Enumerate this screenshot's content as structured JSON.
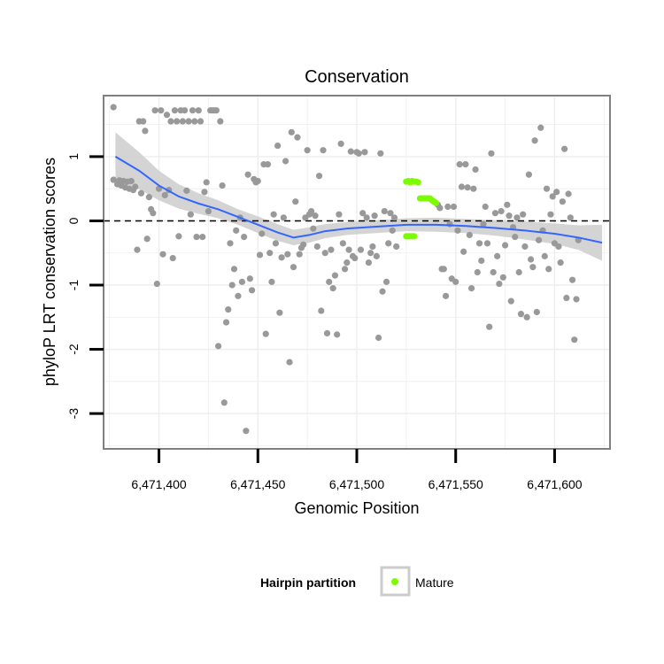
{
  "chart_data": {
    "type": "scatter",
    "title": "Conservation",
    "xlabel": "Genomic Position",
    "ylabel": "phyloP LRT conservation scores",
    "xlim": [
      6471372,
      6471628
    ],
    "ylim": [
      -3.55,
      1.95
    ],
    "x_ticks": [
      6471400,
      6471450,
      6471500,
      6471550,
      6471600
    ],
    "x_tick_labels": [
      "6,471,400",
      "6,471,450",
      "6,471,500",
      "6,471,550",
      "6,471,600"
    ],
    "y_ticks": [
      -3,
      -2,
      -1,
      0,
      1
    ],
    "y_tick_labels": [
      "-3",
      "-2",
      "-1",
      "0",
      "1"
    ],
    "reference_line": {
      "y": 0,
      "style": "dashed"
    },
    "legend": {
      "title": "Hairpin partition",
      "entries": [
        "Mature"
      ],
      "position": "bottom"
    },
    "colors": {
      "other": "#999999",
      "mature": "#7CFC00",
      "smooth": "#3366FF",
      "band": "#cccccc",
      "grid": "#eeeeee",
      "border": "#808080"
    },
    "smooth_curve": [
      [
        6471378,
        1.0
      ],
      [
        6471390,
        0.78
      ],
      [
        6471400,
        0.55
      ],
      [
        6471410,
        0.38
      ],
      [
        6471420,
        0.27
      ],
      [
        6471430,
        0.18
      ],
      [
        6471440,
        0.06
      ],
      [
        6471450,
        -0.06
      ],
      [
        6471460,
        -0.18
      ],
      [
        6471468,
        -0.26
      ],
      [
        6471476,
        -0.22
      ],
      [
        6471484,
        -0.16
      ],
      [
        6471495,
        -0.12
      ],
      [
        6471510,
        -0.09
      ],
      [
        6471525,
        -0.06
      ],
      [
        6471540,
        -0.06
      ],
      [
        6471555,
        -0.08
      ],
      [
        6471570,
        -0.11
      ],
      [
        6471585,
        -0.15
      ],
      [
        6471600,
        -0.2
      ],
      [
        6471612,
        -0.26
      ],
      [
        6471624,
        -0.34
      ]
    ],
    "band_upper": [
      1.38,
      1.07,
      0.78,
      0.57,
      0.43,
      0.32,
      0.18,
      0.07,
      -0.05,
      -0.14,
      -0.1,
      -0.05,
      -0.02,
      0.01,
      0.04,
      0.05,
      0.03,
      0.01,
      -0.01,
      -0.04,
      -0.07,
      -0.06
    ],
    "band_lower": [
      0.62,
      0.49,
      0.32,
      0.19,
      0.11,
      0.04,
      -0.06,
      -0.19,
      -0.31,
      -0.38,
      -0.34,
      -0.27,
      -0.22,
      -0.19,
      -0.16,
      -0.17,
      -0.19,
      -0.23,
      -0.29,
      -0.36,
      -0.45,
      -0.62
    ],
    "mature_points": [
      [
        6471525,
        0.61
      ],
      [
        6471526,
        0.62
      ],
      [
        6471527,
        0.6
      ],
      [
        6471528,
        0.62
      ],
      [
        6471529,
        0.61
      ],
      [
        6471530,
        0.61
      ],
      [
        6471531,
        0.6
      ],
      [
        6471532,
        0.35
      ],
      [
        6471533,
        0.35
      ],
      [
        6471534,
        0.35
      ],
      [
        6471535,
        0.35
      ],
      [
        6471536,
        0.35
      ],
      [
        6471537,
        0.35
      ],
      [
        6471538,
        0.32
      ],
      [
        6471539,
        0.3
      ],
      [
        6471540,
        0.28
      ],
      [
        6471525,
        -0.24
      ],
      [
        6471526,
        -0.24
      ],
      [
        6471527,
        -0.24
      ],
      [
        6471528,
        -0.24
      ],
      [
        6471529,
        -0.24
      ]
    ],
    "other_points": [
      [
        6471377,
        1.77
      ],
      [
        6471377,
        0.64
      ],
      [
        6471379,
        0.57
      ],
      [
        6471380,
        0.63
      ],
      [
        6471381,
        0.55
      ],
      [
        6471382,
        0.62
      ],
      [
        6471383,
        0.52
      ],
      [
        6471384,
        0.61
      ],
      [
        6471385,
        0.5
      ],
      [
        6471386,
        0.62
      ],
      [
        6471387,
        0.48
      ],
      [
        6471388,
        0.53
      ],
      [
        6471389,
        -0.45
      ],
      [
        6471390,
        1.55
      ],
      [
        6471391,
        0.43
      ],
      [
        6471392,
        1.55
      ],
      [
        6471393,
        1.4
      ],
      [
        6471394,
        -0.28
      ],
      [
        6471395,
        0.37
      ],
      [
        6471396,
        0.18
      ],
      [
        6471397,
        0.12
      ],
      [
        6471398,
        1.72
      ],
      [
        6471399,
        -0.98
      ],
      [
        6471400,
        0.5
      ],
      [
        6471401,
        1.72
      ],
      [
        6471402,
        -0.52
      ],
      [
        6471403,
        0.4
      ],
      [
        6471404,
        1.65
      ],
      [
        6471405,
        0.48
      ],
      [
        6471406,
        1.55
      ],
      [
        6471407,
        -0.58
      ],
      [
        6471408,
        1.72
      ],
      [
        6471409,
        1.55
      ],
      [
        6471410,
        -0.24
      ],
      [
        6471411,
        1.72
      ],
      [
        6471412,
        1.55
      ],
      [
        6471413,
        1.72
      ],
      [
        6471414,
        0.47
      ],
      [
        6471415,
        1.55
      ],
      [
        6471416,
        0.1
      ],
      [
        6471417,
        1.72
      ],
      [
        6471418,
        1.55
      ],
      [
        6471419,
        -0.25
      ],
      [
        6471420,
        1.72
      ],
      [
        6471421,
        1.55
      ],
      [
        6471422,
        -0.25
      ],
      [
        6471423,
        0.45
      ],
      [
        6471424,
        0.6
      ],
      [
        6471425,
        0.15
      ],
      [
        6471426,
        1.72
      ],
      [
        6471427,
        1.72
      ],
      [
        6471428,
        1.72
      ],
      [
        6471429,
        1.72
      ],
      [
        6471430,
        -1.95
      ],
      [
        6471431,
        1.55
      ],
      [
        6471432,
        0.55
      ],
      [
        6471433,
        -2.83
      ],
      [
        6471434,
        -1.58
      ],
      [
        6471435,
        -1.38
      ],
      [
        6471436,
        -0.35
      ],
      [
        6471437,
        -1.0
      ],
      [
        6471438,
        -0.75
      ],
      [
        6471439,
        -0.15
      ],
      [
        6471440,
        -1.17
      ],
      [
        6471441,
        0.05
      ],
      [
        6471442,
        -0.95
      ],
      [
        6471443,
        -0.25
      ],
      [
        6471444,
        -3.27
      ],
      [
        6471445,
        0.72
      ],
      [
        6471446,
        -0.9
      ],
      [
        6471447,
        -1.08
      ],
      [
        6471448,
        0.65
      ],
      [
        6471449,
        0.6
      ],
      [
        6471450,
        0.62
      ],
      [
        6471451,
        -0.53
      ],
      [
        6471452,
        -0.2
      ],
      [
        6471453,
        0.88
      ],
      [
        6471454,
        -1.76
      ],
      [
        6471455,
        0.88
      ],
      [
        6471456,
        -0.5
      ],
      [
        6471457,
        -0.95
      ],
      [
        6471458,
        0.1
      ],
      [
        6471459,
        -0.35
      ],
      [
        6471460,
        1.17
      ],
      [
        6471461,
        -1.43
      ],
      [
        6471462,
        -0.57
      ],
      [
        6471463,
        0.05
      ],
      [
        6471464,
        0.93
      ],
      [
        6471465,
        -0.52
      ],
      [
        6471466,
        -2.2
      ],
      [
        6471467,
        1.38
      ],
      [
        6471468,
        -0.72
      ],
      [
        6471469,
        0.3
      ],
      [
        6471470,
        1.3
      ],
      [
        6471471,
        -0.52
      ],
      [
        6471472,
        -0.42
      ],
      [
        6471473,
        -0.37
      ],
      [
        6471474,
        0.05
      ],
      [
        6471475,
        1.1
      ],
      [
        6471476,
        0.1
      ],
      [
        6471477,
        0.15
      ],
      [
        6471478,
        -0.12
      ],
      [
        6471479,
        0.08
      ],
      [
        6471480,
        -0.4
      ],
      [
        6471481,
        0.7
      ],
      [
        6471482,
        -1.4
      ],
      [
        6471483,
        1.1
      ],
      [
        6471484,
        -0.5
      ],
      [
        6471485,
        -1.75
      ],
      [
        6471486,
        -0.95
      ],
      [
        6471487,
        -0.45
      ],
      [
        6471488,
        -1.05
      ],
      [
        6471489,
        -0.85
      ],
      [
        6471490,
        -1.77
      ],
      [
        6471491,
        0.1
      ],
      [
        6471492,
        1.2
      ],
      [
        6471493,
        -0.35
      ],
      [
        6471494,
        -0.75
      ],
      [
        6471495,
        -0.65
      ],
      [
        6471496,
        -0.45
      ],
      [
        6471497,
        1.08
      ],
      [
        6471498,
        -0.55
      ],
      [
        6471499,
        -0.58
      ],
      [
        6471500,
        1.07
      ],
      [
        6471501,
        1.05
      ],
      [
        6471502,
        -0.45
      ],
      [
        6471503,
        0.12
      ],
      [
        6471504,
        1.07
      ],
      [
        6471505,
        0.05
      ],
      [
        6471506,
        -0.65
      ],
      [
        6471507,
        -0.5
      ],
      [
        6471508,
        -0.4
      ],
      [
        6471509,
        0.08
      ],
      [
        6471510,
        -0.55
      ],
      [
        6471511,
        -1.82
      ],
      [
        6471512,
        1.05
      ],
      [
        6471513,
        -1.1
      ],
      [
        6471514,
        0.15
      ],
      [
        6471515,
        -0.95
      ],
      [
        6471516,
        -0.35
      ],
      [
        6471517,
        0.12
      ],
      [
        6471518,
        -0.15
      ],
      [
        6471519,
        0.05
      ],
      [
        6471520,
        -0.4
      ],
      [
        6471541,
        0.25
      ],
      [
        6471542,
        0.2
      ],
      [
        6471543,
        -0.75
      ],
      [
        6471544,
        -0.75
      ],
      [
        6471545,
        -1.17
      ],
      [
        6471546,
        0.22
      ],
      [
        6471547,
        -0.05
      ],
      [
        6471548,
        -0.9
      ],
      [
        6471549,
        0.22
      ],
      [
        6471550,
        -0.95
      ],
      [
        6471551,
        -0.15
      ],
      [
        6471552,
        0.88
      ],
      [
        6471553,
        0.53
      ],
      [
        6471554,
        -0.48
      ],
      [
        6471555,
        0.88
      ],
      [
        6471556,
        0.52
      ],
      [
        6471557,
        -0.22
      ],
      [
        6471558,
        -1.05
      ],
      [
        6471559,
        0.5
      ],
      [
        6471560,
        0.8
      ],
      [
        6471561,
        -0.8
      ],
      [
        6471562,
        -0.35
      ],
      [
        6471563,
        -0.62
      ],
      [
        6471564,
        -0.05
      ],
      [
        6471565,
        0.22
      ],
      [
        6471566,
        -0.35
      ],
      [
        6471567,
        -1.65
      ],
      [
        6471568,
        1.05
      ],
      [
        6471569,
        -0.8
      ],
      [
        6471570,
        0.12
      ],
      [
        6471571,
        -0.55
      ],
      [
        6471572,
        -0.98
      ],
      [
        6471573,
        0.15
      ],
      [
        6471574,
        -0.88
      ],
      [
        6471575,
        -0.38
      ],
      [
        6471576,
        0.25
      ],
      [
        6471577,
        0.08
      ],
      [
        6471578,
        -1.25
      ],
      [
        6471579,
        -0.1
      ],
      [
        6471580,
        -0.25
      ],
      [
        6471581,
        0.05
      ],
      [
        6471582,
        -0.8
      ],
      [
        6471583,
        -1.45
      ],
      [
        6471584,
        0.1
      ],
      [
        6471585,
        -0.4
      ],
      [
        6471586,
        -1.5
      ],
      [
        6471587,
        0.72
      ],
      [
        6471588,
        -0.6
      ],
      [
        6471589,
        -0.72
      ],
      [
        6471590,
        1.25
      ],
      [
        6471591,
        -1.42
      ],
      [
        6471592,
        -0.3
      ],
      [
        6471593,
        1.45
      ],
      [
        6471594,
        -0.15
      ],
      [
        6471595,
        -0.55
      ],
      [
        6471596,
        0.5
      ],
      [
        6471597,
        -0.75
      ],
      [
        6471598,
        0.1
      ],
      [
        6471599,
        0.38
      ],
      [
        6471600,
        -0.35
      ],
      [
        6471601,
        0.45
      ],
      [
        6471602,
        -0.4
      ],
      [
        6471603,
        -0.65
      ],
      [
        6471604,
        0.3
      ],
      [
        6471605,
        1.12
      ],
      [
        6471606,
        -1.2
      ],
      [
        6471607,
        0.42
      ],
      [
        6471608,
        0.05
      ],
      [
        6471609,
        -0.92
      ],
      [
        6471610,
        -1.85
      ],
      [
        6471611,
        -1.22
      ],
      [
        6471612,
        -0.3
      ]
    ]
  }
}
